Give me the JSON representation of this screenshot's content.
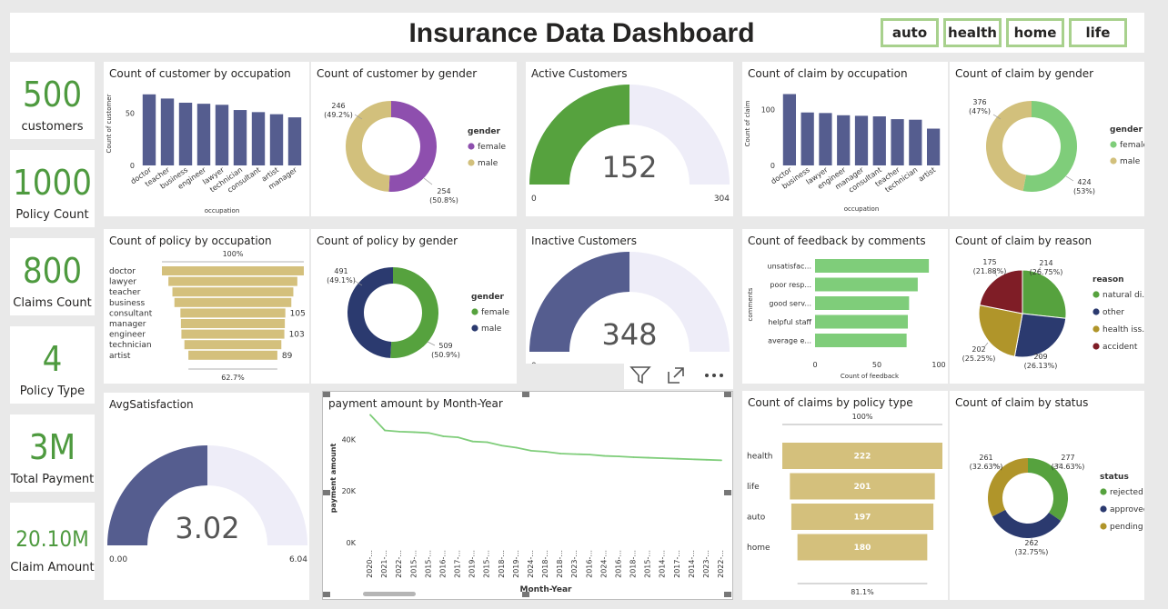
{
  "header": {
    "title": "Insurance Data Dashboard"
  },
  "slicers": [
    "auto",
    "health",
    "home",
    "life"
  ],
  "kpis": [
    {
      "value": "500",
      "label": "customers"
    },
    {
      "value": "1000",
      "label": "Policy Count"
    },
    {
      "value": "800",
      "label": "Claims Count"
    },
    {
      "value": "4",
      "label": "Policy Type"
    },
    {
      "value": "3M",
      "label": "Total Payment"
    },
    {
      "value": "20.10M",
      "label": "Claim Amount"
    }
  ],
  "visual_header_icons": [
    "filter-icon",
    "focus-mode-icon",
    "more-options-icon"
  ],
  "colors": {
    "navy": "#555d8f",
    "dark_navy": "#2b3a6f",
    "green": "#56a23e",
    "light_green": "#7fcd7a",
    "tan": "#d4c07c",
    "gold": "#b49a2a",
    "maroon": "#7f1d26",
    "gauge_bg": "#eeedf8",
    "kpi_green": "#4e9a3f",
    "slicer_border": "#a8d18d"
  },
  "chart_data": [
    {
      "id": "cust_occ",
      "type": "bar",
      "title": "Count of customer by occupation",
      "xlabel": "occupation",
      "ylabel": "Count of customer",
      "categories": [
        "doctor",
        "teacher",
        "business",
        "engineer",
        "lawyer",
        "technician",
        "consultant",
        "artist",
        "manager"
      ],
      "values": [
        68,
        64,
        60,
        59,
        58,
        53,
        51,
        49,
        46
      ],
      "ylim": [
        0,
        80
      ],
      "yticks": [
        "0",
        "50"
      ]
    },
    {
      "id": "cust_gender",
      "type": "pie",
      "title": "Count of customer by gender",
      "legend_title": "gender",
      "slices": [
        {
          "label": "female",
          "value": 254,
          "text": "254",
          "pct": "(50.8%)",
          "color": "#8e4fae"
        },
        {
          "label": "male",
          "value": 246,
          "text": "246",
          "pct": "(49.2%)",
          "color": "#d2c07c"
        }
      ]
    },
    {
      "id": "active",
      "type": "gauge",
      "title": "Active Customers",
      "value": 152,
      "min": 0,
      "max": 304,
      "value_text": "152",
      "min_text": "0",
      "max_text": "304"
    },
    {
      "id": "claim_occ",
      "type": "bar",
      "title": "Count of claim by occupation",
      "xlabel": "occupation",
      "ylabel": "Count of claim",
      "categories": [
        "doctor",
        "business",
        "lawyer",
        "engineer",
        "manager",
        "consultant",
        "teacher",
        "technician",
        "artist"
      ],
      "values": [
        128,
        95,
        94,
        90,
        89,
        88,
        83,
        82,
        66
      ],
      "ylim": [
        0,
        150
      ],
      "yticks": [
        "0",
        "100"
      ]
    },
    {
      "id": "claim_gender",
      "type": "pie",
      "title": "Count of claim by gender",
      "legend_title": "gender",
      "slices": [
        {
          "label": "female",
          "value": 424,
          "text": "424",
          "pct": "(53%)",
          "color": "#7fcd7a"
        },
        {
          "label": "male",
          "value": 376,
          "text": "376",
          "pct": "(47%)",
          "color": "#d2c07c"
        }
      ]
    },
    {
      "id": "policy_occ",
      "type": "funnel",
      "title": "Count of policy by occupation",
      "top_label": "100%",
      "bottom_label": "62.7%",
      "categories": [
        "doctor",
        "lawyer",
        "teacher",
        "business",
        "consultant",
        "manager",
        "engineer",
        "technician",
        "artist"
      ],
      "values": [
        142,
        129,
        121,
        117,
        105,
        104,
        103,
        97,
        89
      ],
      "value_labels": [
        "",
        "",
        "",
        "",
        "105",
        "",
        "103",
        "",
        "89"
      ]
    },
    {
      "id": "policy_gender",
      "type": "pie",
      "title": "Count of policy by gender",
      "legend_title": "gender",
      "slices": [
        {
          "label": "female",
          "value": 509,
          "text": "509",
          "pct": "(50.9%)",
          "color": "#56a23e"
        },
        {
          "label": "male",
          "value": 491,
          "text": "491",
          "pct": "(49.1%)",
          "color": "#2b3a6f"
        }
      ]
    },
    {
      "id": "inactive",
      "type": "gauge",
      "title": "Inactive Customers",
      "value": 348,
      "min": 0,
      "max": 696,
      "value_text": "348",
      "min_text": "0",
      "max_text": ""
    },
    {
      "id": "feedback",
      "type": "bar",
      "title": "Count of feedback by comments",
      "xlabel": "Count of feedback",
      "ylabel": "comments",
      "categories": [
        "unsatisfac...",
        "poor resp...",
        "good serv...",
        "helpful staff",
        "average e..."
      ],
      "values": [
        92,
        83,
        76,
        75,
        74
      ],
      "xlim": [
        0,
        100
      ],
      "xticks": [
        "0",
        "50",
        "100"
      ]
    },
    {
      "id": "claim_reason",
      "type": "pie",
      "title": "Count of claim by reason",
      "legend_title": "reason",
      "slices": [
        {
          "label": "natural di...",
          "value": 214,
          "text": "214",
          "pct": "(26.75%)",
          "color": "#56a23e"
        },
        {
          "label": "other",
          "value": 209,
          "text": "209",
          "pct": "(26.13%)",
          "color": "#2b3a6f"
        },
        {
          "label": "health iss...",
          "value": 202,
          "text": "202",
          "pct": "(25.25%)",
          "color": "#b0952a"
        },
        {
          "label": "accident",
          "value": 175,
          "text": "175",
          "pct": "(21.88%)",
          "color": "#7f1d26"
        }
      ]
    },
    {
      "id": "avg_sat",
      "type": "gauge",
      "title": "AvgSatisfaction",
      "value": 3.02,
      "min": 0,
      "max": 6.04,
      "value_text": "3.02",
      "min_text": "0.00",
      "max_text": "6.04"
    },
    {
      "id": "payment",
      "type": "line",
      "title": "payment amount by Month-Year",
      "xlabel": "Month-Year",
      "ylabel": "payment amount",
      "x": [
        "2020-...",
        "2021-...",
        "2022-...",
        "2015-...",
        "2015-...",
        "2016-...",
        "2017-...",
        "2019-...",
        "2015-...",
        "2018-...",
        "2019-...",
        "2024-...",
        "2018-...",
        "2018-...",
        "2023-...",
        "2016-...",
        "2024-...",
        "2016-...",
        "2018-...",
        "2015-...",
        "2014-...",
        "2017-...",
        "2014-...",
        "2023-...",
        "2022-..."
      ],
      "values": [
        49500,
        43500,
        43000,
        42800,
        42500,
        41200,
        40800,
        39200,
        38900,
        37600,
        36800,
        35600,
        35200,
        34500,
        34300,
        34100,
        33600,
        33400,
        33100,
        32900,
        32700,
        32500,
        32300,
        32100,
        31900
      ],
      "ylim": [
        0,
        50000
      ],
      "yticks": [
        "0K",
        "20K",
        "40K"
      ]
    },
    {
      "id": "claims_policy",
      "type": "funnel",
      "title": "Count of claims by policy type",
      "top_label": "100%",
      "bottom_label": "81.1%",
      "categories": [
        "health",
        "life",
        "auto",
        "home"
      ],
      "values": [
        222,
        201,
        197,
        180
      ],
      "value_labels": [
        "222",
        "201",
        "197",
        "180"
      ]
    },
    {
      "id": "claim_status",
      "type": "pie",
      "title": "Count of claim by status",
      "legend_title": "status",
      "slices": [
        {
          "label": "rejected",
          "value": 277,
          "text": "277",
          "pct": "(34.63%)",
          "color": "#56a23e"
        },
        {
          "label": "approved",
          "value": 262,
          "text": "262",
          "pct": "(32.75%)",
          "color": "#2b3a6f"
        },
        {
          "label": "pending",
          "value": 261,
          "text": "261",
          "pct": "(32.63%)",
          "color": "#b0952a"
        }
      ]
    }
  ]
}
